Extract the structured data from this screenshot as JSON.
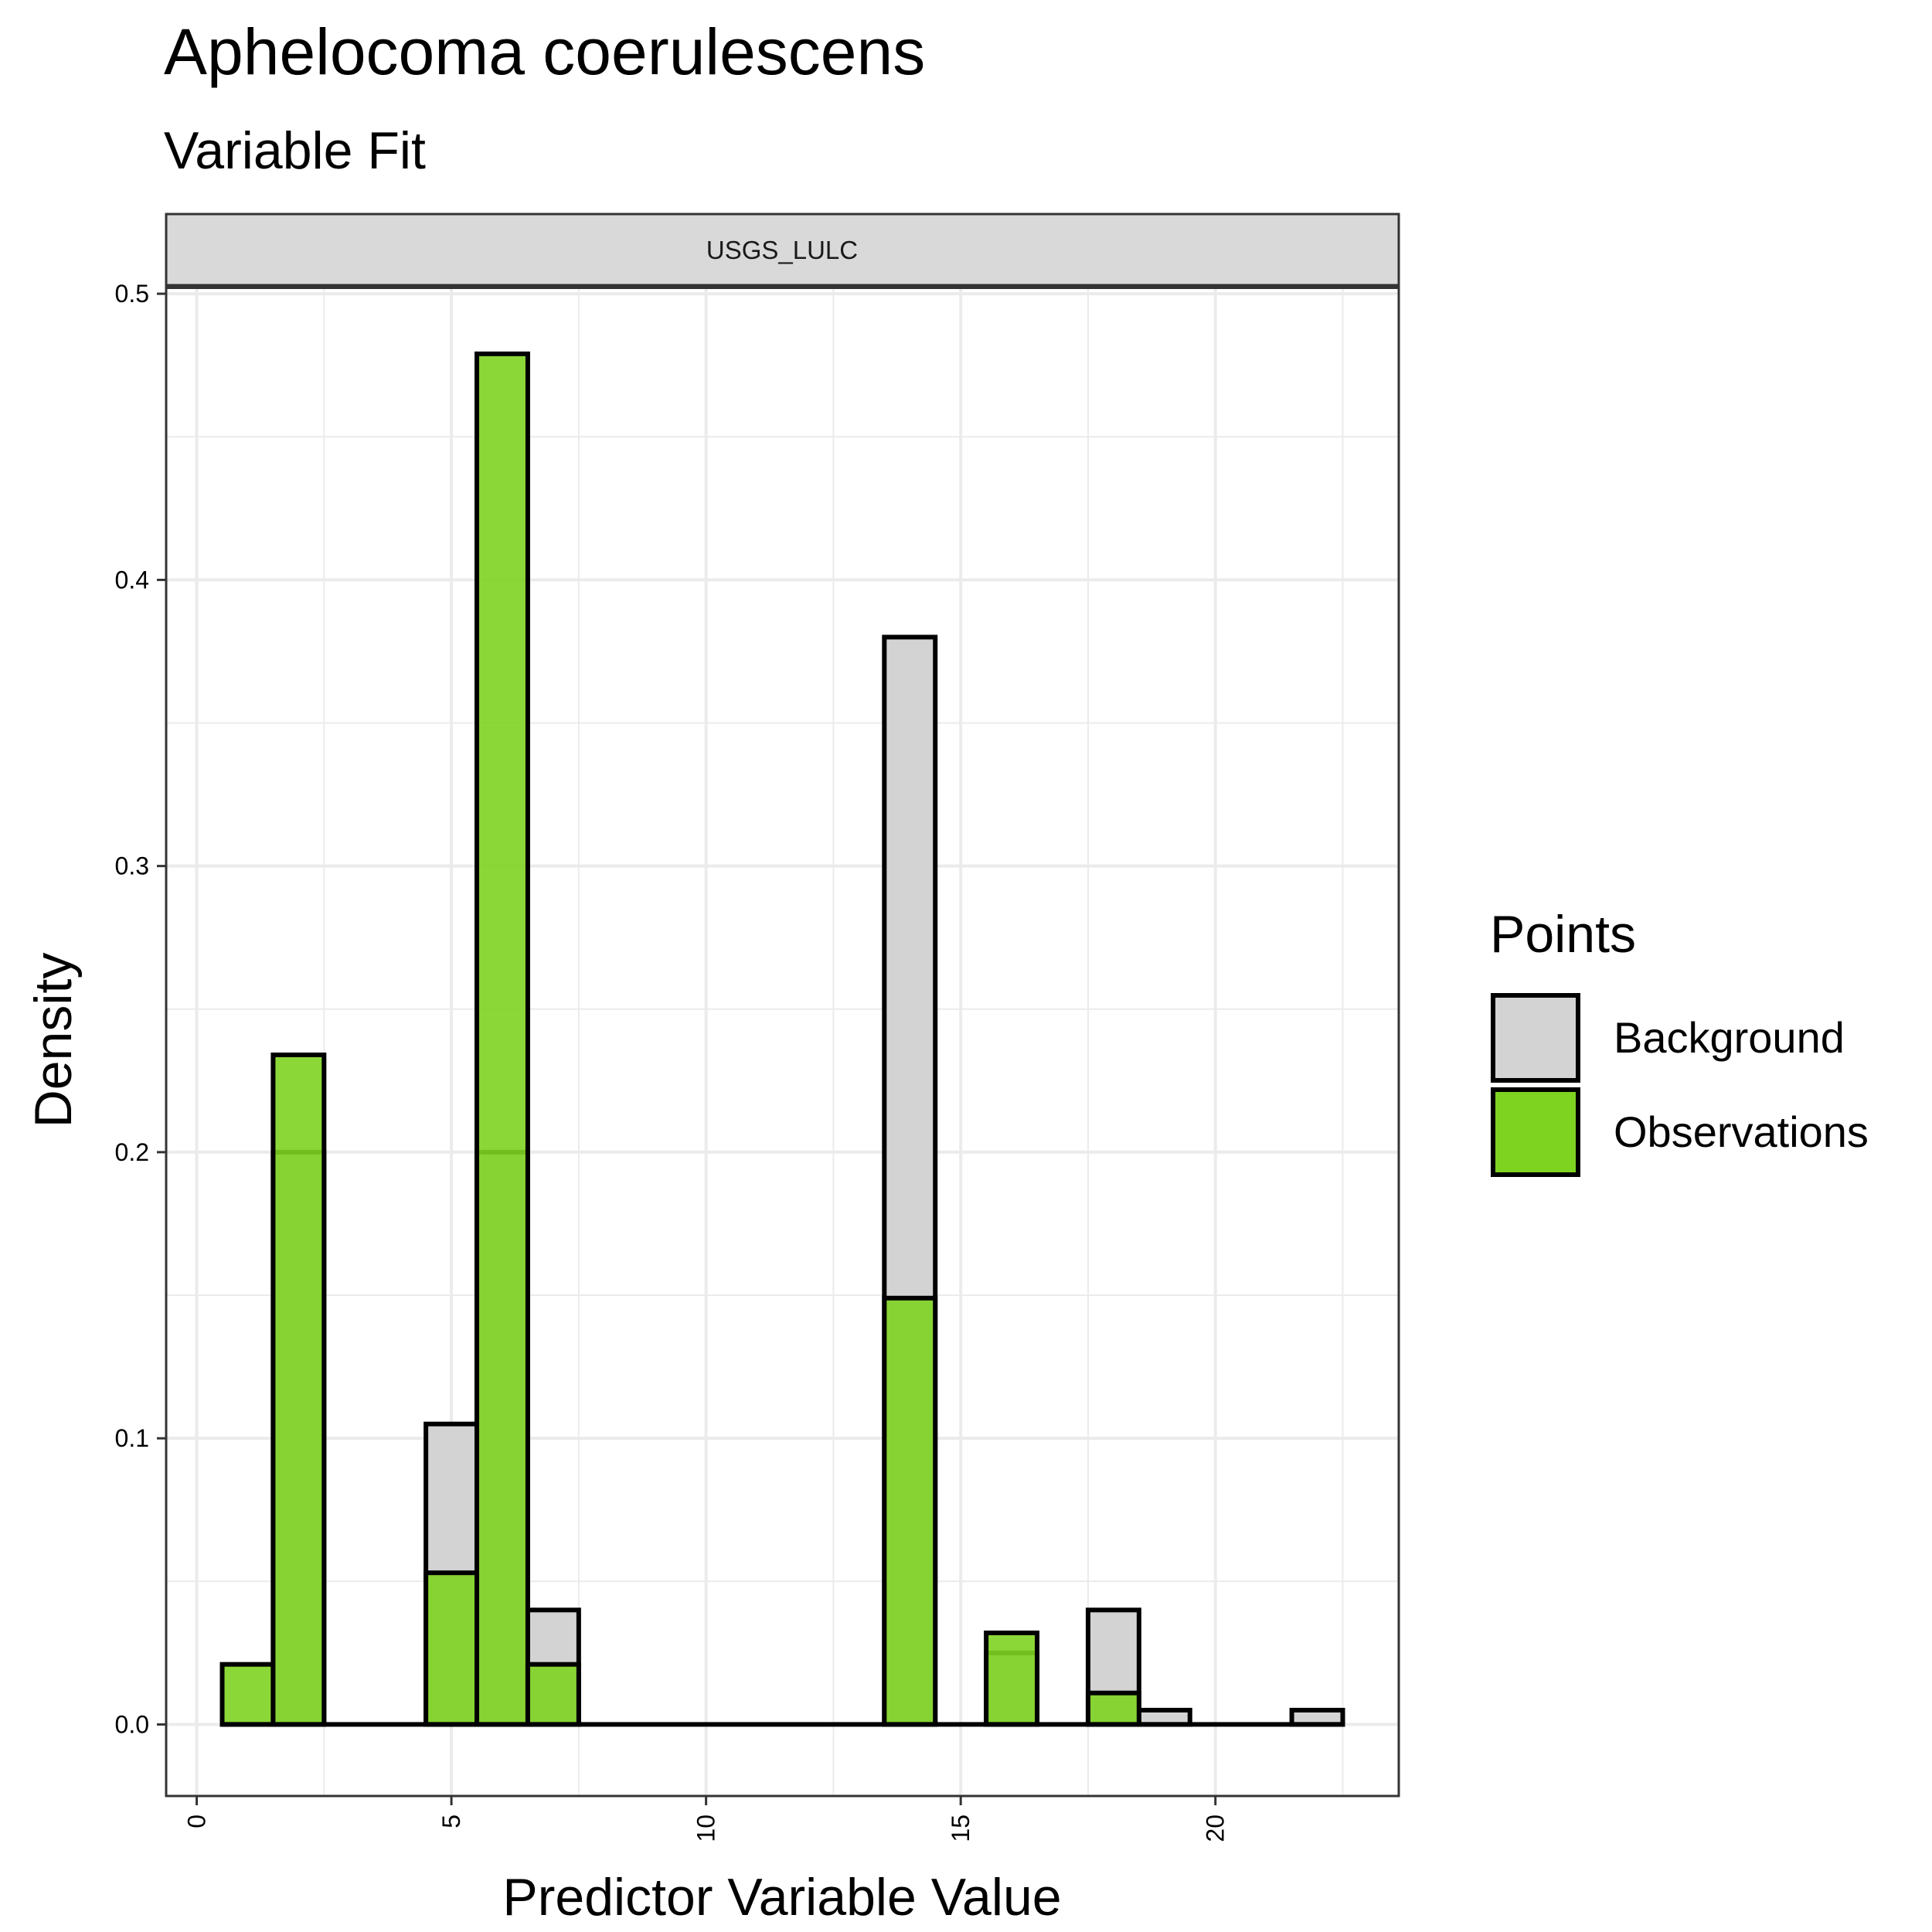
{
  "title": "Aphelocoma coerulescens",
  "subtitle": "Variable Fit",
  "colors": {
    "background_fill": "#d3d3d3",
    "observation_fill": "#7ed321",
    "grid": "#ebebeb",
    "strip_fill": "#d9d9d9",
    "outline": "#000000"
  },
  "chart_data": {
    "type": "bar",
    "title": "Aphelocoma coerulescens",
    "subtitle": "Variable Fit",
    "facet": "USGS_LULC",
    "xlabel": "Predictor Variable Value",
    "ylabel": "Density",
    "xlim": [
      -0.6,
      23.6
    ],
    "ylim": [
      -0.025,
      0.503
    ],
    "x_ticks": [
      "0",
      "5",
      "10",
      "15",
      "20"
    ],
    "x_tick_values": [
      0,
      5,
      10,
      15,
      20
    ],
    "y_ticks": [
      "0.0",
      "0.1",
      "0.2",
      "0.3",
      "0.4",
      "0.5"
    ],
    "y_tick_values": [
      0.0,
      0.1,
      0.2,
      0.3,
      0.4,
      0.5
    ],
    "bin_width": 1,
    "bin_centers": [
      1,
      2,
      3,
      4,
      5,
      6,
      7,
      8,
      9,
      10,
      11,
      12,
      13,
      14,
      15,
      16,
      17,
      18,
      19,
      20,
      21,
      22
    ],
    "grid": true,
    "legend": {
      "title": "Points",
      "position": "right"
    },
    "series": [
      {
        "name": "Background",
        "values": [
          0.0,
          0.2,
          0.0,
          0.0,
          0.105,
          0.2,
          0.04,
          0.0,
          0.0,
          0.0,
          0.0,
          0.0,
          0.0,
          0.38,
          0.0,
          0.025,
          0.0,
          0.04,
          0.005,
          0.0,
          0.0,
          0.005
        ]
      },
      {
        "name": "Observations",
        "values": [
          0.021,
          0.234,
          0.0,
          0.0,
          0.053,
          0.479,
          0.021,
          0.0,
          0.0,
          0.0,
          0.0,
          0.0,
          0.0,
          0.149,
          0.0,
          0.032,
          0.0,
          0.011,
          0.0,
          0.0,
          0.0,
          0.0
        ]
      }
    ]
  }
}
